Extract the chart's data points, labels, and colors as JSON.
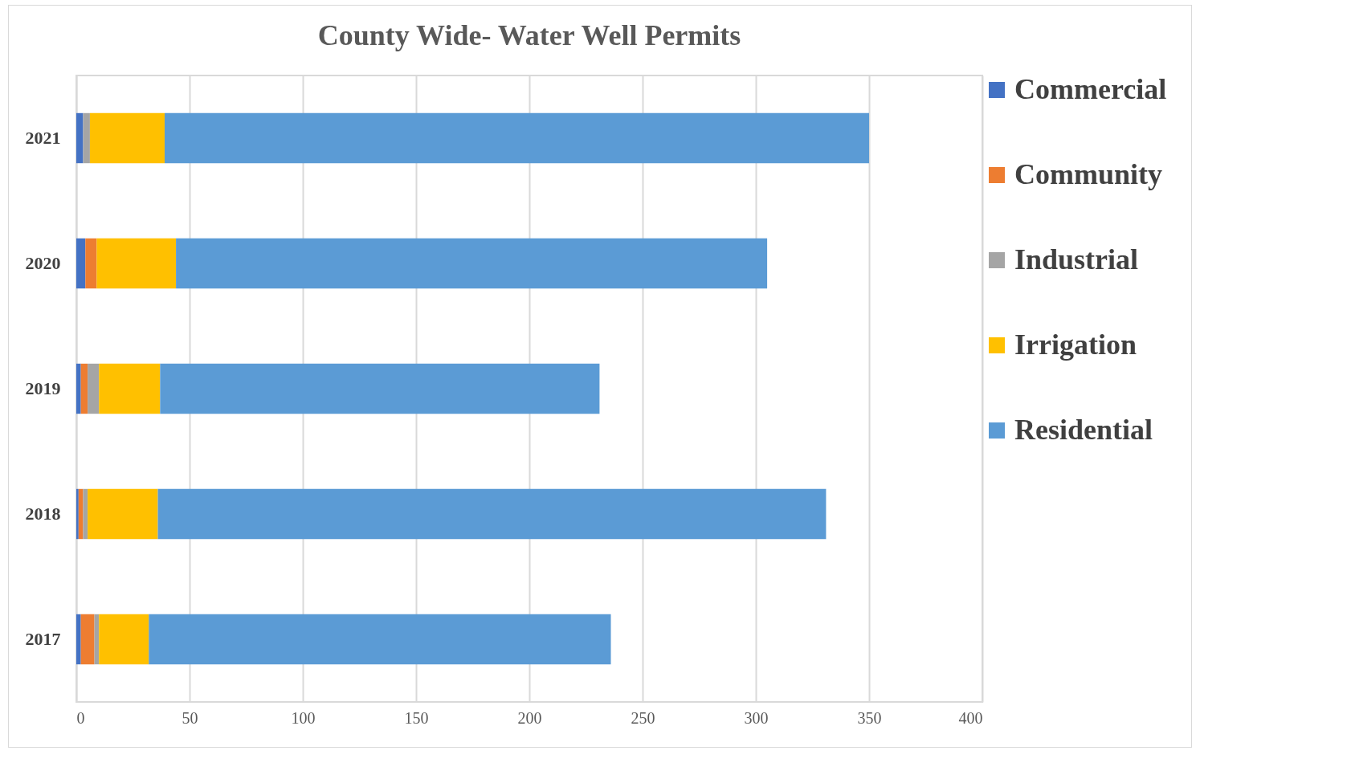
{
  "chart_data": {
    "type": "bar",
    "title": "County Wide- Water Well Permits",
    "orientation": "horizontal",
    "stacked": true,
    "categories": [
      "2021",
      "2020",
      "2019",
      "2018",
      "2017"
    ],
    "series": [
      {
        "name": "Commercial",
        "color": "#4472c4",
        "values": [
          3,
          4,
          2,
          1,
          2
        ]
      },
      {
        "name": "Community",
        "color": "#ed7d31",
        "values": [
          0,
          5,
          3,
          2,
          6
        ]
      },
      {
        "name": "Industrial",
        "color": "#a5a5a5",
        "values": [
          3,
          0,
          5,
          2,
          2
        ]
      },
      {
        "name": "Irrigation",
        "color": "#ffc000",
        "values": [
          33,
          35,
          27,
          31,
          22
        ]
      },
      {
        "name": "Residential",
        "color": "#5b9bd5",
        "values": [
          311,
          261,
          194,
          295,
          204
        ]
      }
    ],
    "xlim": [
      0,
      400
    ],
    "xticks": [
      0,
      50,
      100,
      150,
      200,
      250,
      300,
      350,
      400
    ],
    "grid": "x",
    "legend": "right"
  }
}
